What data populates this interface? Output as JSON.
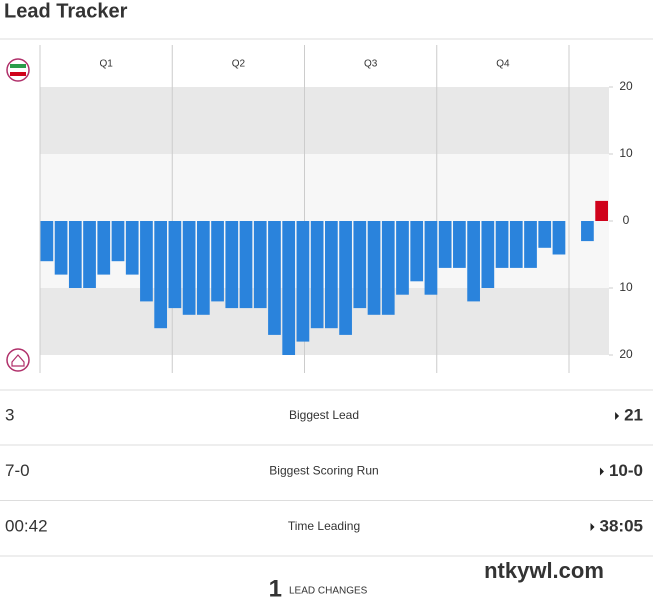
{
  "title": "Lead Tracker",
  "chart_data": {
    "type": "bar",
    "quarters": [
      "Q1",
      "Q2",
      "Q3",
      "Q4"
    ],
    "values": [
      -6,
      -8,
      -10,
      -10,
      -8,
      -6,
      -8,
      -12,
      -16,
      -13,
      -14,
      -14,
      -12,
      -13,
      -13,
      -13,
      -17,
      -20,
      -18,
      -16,
      -16,
      -17,
      -13,
      -14,
      -14,
      -11,
      -9,
      -11,
      -7,
      -7,
      -12,
      -10,
      -7,
      -7,
      -7,
      -4,
      -5,
      0,
      -3,
      3
    ],
    "colors": {
      "positive": "#d0021b",
      "negative": "#2a83dc"
    },
    "ylim": [
      -20,
      20
    ],
    "yticks": [
      20,
      10,
      0,
      {
        "value": -10,
        "label": "10"
      },
      {
        "value": -20,
        "label": "20"
      }
    ]
  },
  "stats": [
    {
      "left": "3",
      "label": "Biggest Lead",
      "right": "21"
    },
    {
      "left": "7-0",
      "label": "Biggest Scoring Run",
      "right": "10-0"
    },
    {
      "left": "00:42",
      "label": "Time Leading",
      "right": "38:05"
    }
  ],
  "lead_changes": {
    "count": "1",
    "label": "LEAD CHANGES"
  },
  "watermark": "ntkywl.com"
}
